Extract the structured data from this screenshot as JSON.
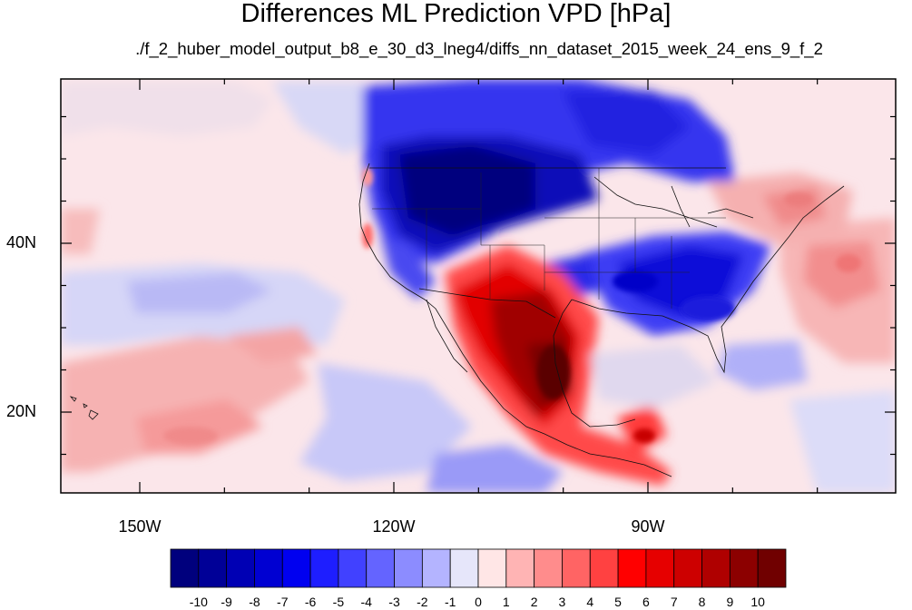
{
  "title": "Differences ML Prediction VPD [hPa]",
  "subtitle": "./f_2_huber_model_output_b8_e_30_d3_lneg4/diffs_nn_dataset_2015_week_24_ens_9_f_2",
  "axes": {
    "lon_ticks": [
      {
        "label": "150W",
        "lon": -150
      },
      {
        "label": "120W",
        "lon": -120
      },
      {
        "label": "90W",
        "lon": -90
      }
    ],
    "lat_ticks": [
      {
        "label": "40N",
        "lat": 40
      },
      {
        "label": "20N",
        "lat": 20
      }
    ]
  },
  "colorbar": {
    "labels": [
      "-10",
      "-9",
      "-8",
      "-7",
      "-6",
      "-5",
      "-4",
      "-3",
      "-2",
      "-1",
      "0",
      "1",
      "2",
      "3",
      "4",
      "5",
      "6",
      "7",
      "8",
      "9",
      "10"
    ],
    "colors": [
      "#00007d",
      "#000097",
      "#0000b4",
      "#0000d2",
      "#0000f0",
      "#1e1eff",
      "#4141ff",
      "#6464ff",
      "#8c8cff",
      "#b4b4ff",
      "#e6e6fa",
      "#ffe6e6",
      "#ffb4b4",
      "#ff8c8c",
      "#ff6464",
      "#ff4141",
      "#ff0000",
      "#e60000",
      "#cd0000",
      "#af0000",
      "#8c0000",
      "#700000"
    ]
  }
}
